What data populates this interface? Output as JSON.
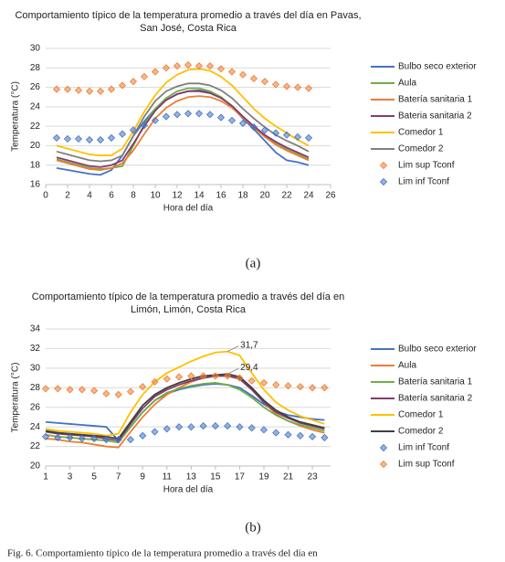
{
  "chart_data": [
    {
      "type": "line",
      "title": [
        "Comportamiento típico de la temperatura promedio a través del día en Pavas,",
        "San José, Costa Rica"
      ],
      "x_label": "Hora del día",
      "y_label": "Temperatura (°C)",
      "xlim": [
        0,
        26
      ],
      "xticks": [
        0,
        2,
        4,
        6,
        8,
        10,
        12,
        14,
        16,
        18,
        20,
        22,
        24,
        26
      ],
      "ylim": [
        16,
        30
      ],
      "yticks": [
        16,
        18,
        20,
        22,
        24,
        26,
        28,
        30
      ],
      "grid": true,
      "x": [
        1,
        2,
        3,
        4,
        5,
        6,
        7,
        8,
        9,
        10,
        11,
        12,
        13,
        14,
        15,
        16,
        17,
        18,
        19,
        20,
        21,
        22,
        23,
        24
      ],
      "series": [
        {
          "name": "Bulbo seco exterior",
          "color": "#4472c4",
          "style": "line",
          "values": [
            17.7,
            17.5,
            17.3,
            17.1,
            17.0,
            17.5,
            19.0,
            21.0,
            22.5,
            23.8,
            24.7,
            25.3,
            25.6,
            25.7,
            25.5,
            25.0,
            24.0,
            22.8,
            21.7,
            20.5,
            19.3,
            18.5,
            18.3,
            18.0
          ]
        },
        {
          "name": "Aula",
          "color": "#70ad47",
          "style": "line",
          "values": [
            18.6,
            18.3,
            18.0,
            17.7,
            17.6,
            17.7,
            17.9,
            20.0,
            22.2,
            23.8,
            24.9,
            25.6,
            25.9,
            25.9,
            25.6,
            25.0,
            24.1,
            23.0,
            21.9,
            21.0,
            20.2,
            19.6,
            19.1,
            18.6
          ]
        },
        {
          "name": "Batería sanitaria 1",
          "color": "#ed7d31",
          "style": "line",
          "values": [
            18.5,
            18.2,
            17.9,
            17.6,
            17.5,
            17.7,
            18.2,
            19.5,
            21.2,
            22.8,
            23.9,
            24.6,
            25.0,
            25.1,
            25.0,
            24.6,
            23.9,
            22.9,
            21.9,
            20.9,
            20.1,
            19.5,
            19.0,
            18.5
          ]
        },
        {
          "name": "Bateria sanitaria 2",
          "color": "#843c6c",
          "style": "line",
          "values": [
            18.8,
            18.5,
            18.2,
            17.9,
            17.8,
            18.0,
            18.5,
            20.2,
            22.0,
            23.6,
            24.7,
            25.3,
            25.6,
            25.6,
            25.4,
            24.9,
            24.1,
            23.0,
            22.0,
            21.1,
            20.4,
            19.8,
            19.3,
            18.8
          ]
        },
        {
          "name": "Comedor 1",
          "color": "#ffc000",
          "style": "line",
          "values": [
            20.0,
            19.7,
            19.4,
            19.1,
            19.0,
            19.0,
            19.7,
            21.5,
            23.5,
            25.2,
            26.5,
            27.3,
            27.8,
            27.9,
            27.7,
            27.1,
            26.2,
            25.0,
            23.8,
            22.8,
            22.0,
            21.3,
            20.6,
            20.0
          ]
        },
        {
          "name": "Comedor 2",
          "color": "#7f7f7f",
          "style": "line",
          "values": [
            19.4,
            19.1,
            18.8,
            18.5,
            18.4,
            18.5,
            19.0,
            21.0,
            23.0,
            24.6,
            25.6,
            26.1,
            26.4,
            26.4,
            26.2,
            25.7,
            24.9,
            23.8,
            22.8,
            21.9,
            21.1,
            20.5,
            20.0,
            19.4
          ]
        },
        {
          "name": "Lim sup Tconf",
          "color": "#ed7d31",
          "style": "diamond",
          "values": [
            25.8,
            25.8,
            25.7,
            25.6,
            25.6,
            25.8,
            26.2,
            26.6,
            27.1,
            27.6,
            28.0,
            28.2,
            28.3,
            28.2,
            28.2,
            27.9,
            27.6,
            27.3,
            26.9,
            26.6,
            26.3,
            26.1,
            26.0,
            25.9
          ]
        },
        {
          "name": "Lim inf Tconf",
          "color": "#4472c4",
          "style": "diamond",
          "values": [
            20.8,
            20.7,
            20.7,
            20.6,
            20.6,
            20.8,
            21.2,
            21.6,
            22.1,
            22.6,
            23.0,
            23.2,
            23.3,
            23.3,
            23.2,
            22.9,
            22.6,
            22.3,
            21.9,
            21.6,
            21.3,
            21.1,
            20.9,
            20.8
          ]
        }
      ]
    },
    {
      "type": "line",
      "title": [
        "Comportamiento típico de la temperatura promedio a través del día en",
        "Limón, Limón, Costa Rica"
      ],
      "x_label": "Hora del día",
      "y_label": "Temperatura (°C)",
      "xlim": [
        1,
        24.5
      ],
      "xticks": [
        1,
        3,
        5,
        7,
        9,
        11,
        13,
        15,
        17,
        19,
        21,
        23
      ],
      "ylim": [
        20,
        34
      ],
      "yticks": [
        20,
        22,
        24,
        26,
        28,
        30,
        32,
        34
      ],
      "grid": true,
      "x": [
        1,
        2,
        3,
        4,
        5,
        6,
        7,
        8,
        9,
        10,
        11,
        12,
        13,
        14,
        15,
        16,
        17,
        18,
        19,
        20,
        21,
        22,
        23,
        24
      ],
      "series": [
        {
          "name": "Bulbo seco exterior",
          "color": "#4472c4",
          "style": "line",
          "values": [
            24.5,
            24.4,
            24.3,
            24.2,
            24.1,
            24.0,
            22.6,
            24.0,
            25.5,
            26.7,
            27.4,
            27.8,
            28.1,
            28.3,
            28.4,
            28.3,
            28.0,
            27.2,
            26.3,
            25.6,
            25.2,
            25.0,
            24.8,
            24.7
          ]
        },
        {
          "name": "Aula",
          "color": "#ed7d31",
          "style": "line",
          "values": [
            22.8,
            22.7,
            22.5,
            22.4,
            22.2,
            22.0,
            21.9,
            23.5,
            25.0,
            26.3,
            27.3,
            28.0,
            28.6,
            29.0,
            29.2,
            29.3,
            29.0,
            28.0,
            26.5,
            25.3,
            24.6,
            24.1,
            23.7,
            23.4
          ]
        },
        {
          "name": "Batería sanitaria 1",
          "color": "#70ad47",
          "style": "line",
          "values": [
            23.2,
            23.0,
            22.9,
            22.8,
            22.7,
            22.6,
            22.4,
            24.0,
            25.5,
            26.7,
            27.5,
            27.9,
            28.2,
            28.4,
            28.5,
            28.3,
            27.8,
            27.0,
            26.0,
            25.2,
            24.6,
            24.2,
            23.9,
            23.6
          ]
        },
        {
          "name": "Batería sanitaria 2",
          "color": "#843c6c",
          "style": "line",
          "values": [
            23.5,
            23.3,
            23.2,
            23.1,
            23.0,
            22.8,
            22.6,
            24.3,
            25.9,
            27.1,
            27.8,
            28.3,
            28.7,
            29.0,
            29.2,
            29.2,
            28.9,
            27.8,
            26.5,
            25.5,
            24.9,
            24.4,
            24.1,
            23.8
          ]
        },
        {
          "name": "Comedor 1",
          "color": "#ffc000",
          "style": "line",
          "values": [
            23.8,
            23.6,
            23.5,
            23.4,
            23.3,
            23.1,
            23.3,
            25.5,
            27.3,
            28.6,
            29.5,
            30.1,
            30.7,
            31.2,
            31.6,
            31.7,
            31.3,
            29.5,
            27.8,
            26.5,
            25.7,
            25.1,
            24.7,
            24.3
          ],
          "value_labels": [
            null,
            null,
            null,
            null,
            null,
            null,
            null,
            null,
            null,
            null,
            null,
            null,
            null,
            null,
            null,
            "31,7",
            null,
            null,
            null,
            null,
            null,
            null,
            null,
            null
          ]
        },
        {
          "name": "Comedor 2",
          "color": "#404040",
          "style": "line",
          "values": [
            23.6,
            23.4,
            23.3,
            23.2,
            23.1,
            23.0,
            22.8,
            24.5,
            26.2,
            27.3,
            28.0,
            28.5,
            28.9,
            29.2,
            29.3,
            29.4,
            29.1,
            28.0,
            26.7,
            25.7,
            25.0,
            24.5,
            24.2,
            23.9
          ],
          "value_labels": [
            null,
            null,
            null,
            null,
            null,
            null,
            null,
            null,
            null,
            null,
            null,
            null,
            null,
            null,
            null,
            "29,4",
            null,
            null,
            null,
            null,
            null,
            null,
            null,
            null
          ]
        },
        {
          "name": "Lim inf Tconf",
          "color": "#4472c4",
          "style": "diamond",
          "values": [
            23.0,
            22.9,
            22.9,
            22.8,
            22.8,
            22.7,
            22.7,
            22.7,
            23.1,
            23.5,
            23.8,
            24.0,
            24.0,
            24.1,
            24.1,
            24.1,
            24.0,
            23.9,
            23.7,
            23.4,
            23.2,
            23.1,
            23.0,
            22.9
          ]
        },
        {
          "name": "Lim sup Tconf",
          "color": "#ed7d31",
          "style": "diamond",
          "values": [
            27.9,
            27.9,
            27.8,
            27.8,
            27.7,
            27.4,
            27.3,
            27.6,
            28.1,
            28.6,
            28.9,
            29.1,
            29.2,
            29.2,
            29.2,
            29.2,
            29.0,
            28.7,
            28.5,
            28.3,
            28.2,
            28.1,
            28.0,
            28.0
          ]
        }
      ]
    }
  ],
  "captions": [
    "(a)",
    "(b)"
  ],
  "figure_caption": "Fig. 6. Comportamiento típico de la temperatura promedio a través del día en"
}
